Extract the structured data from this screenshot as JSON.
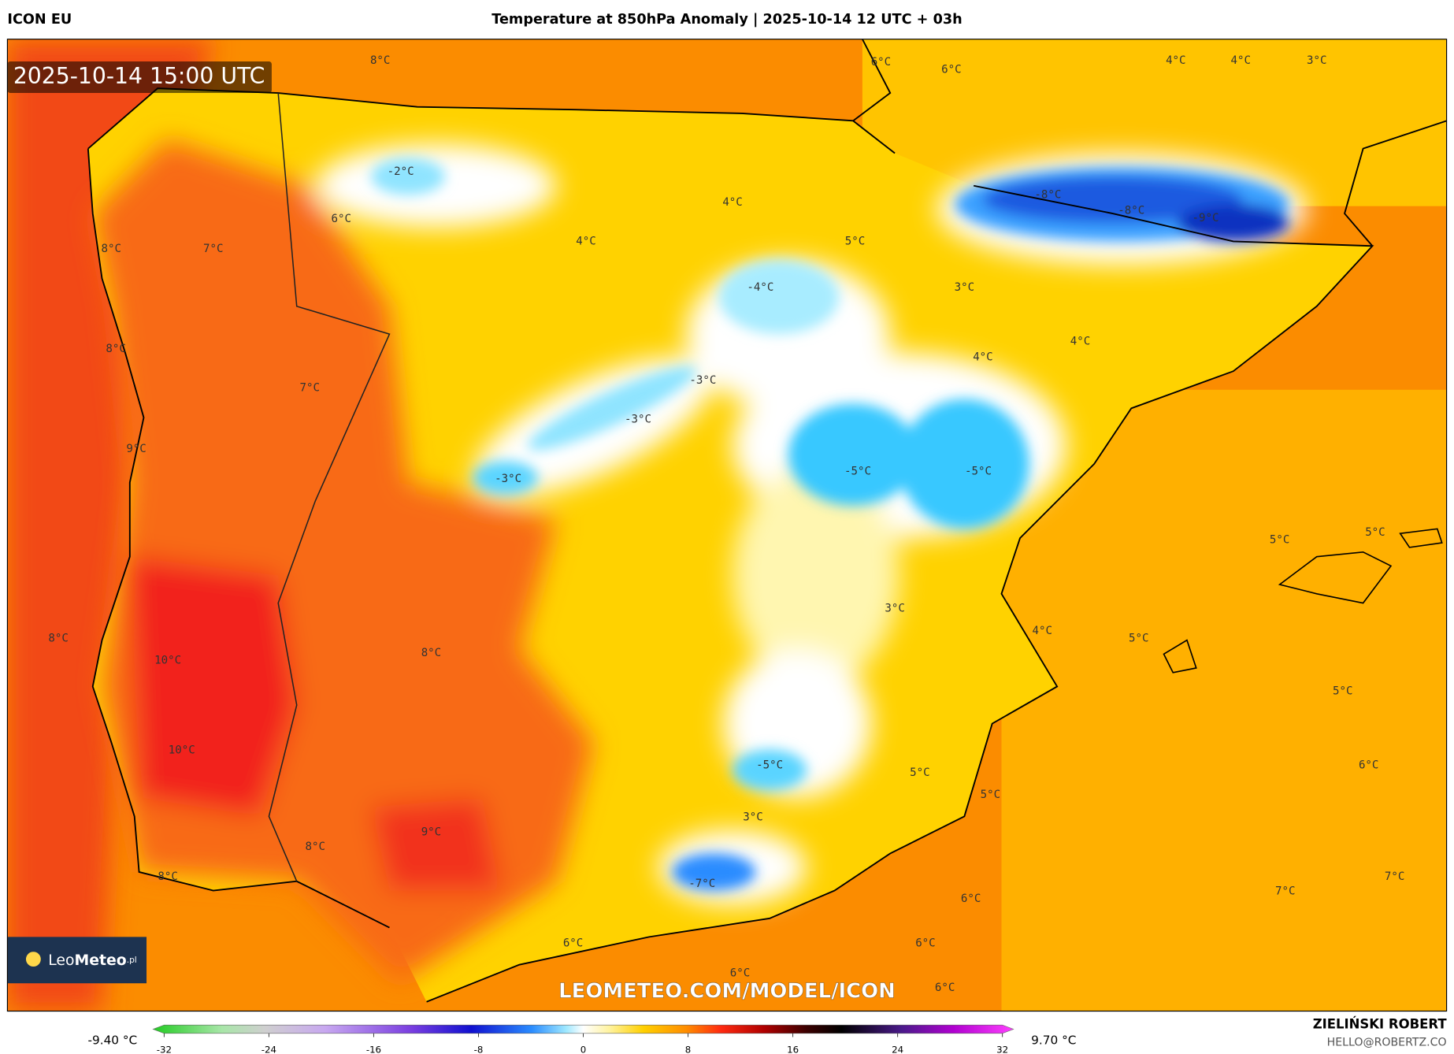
{
  "header": {
    "model": "ICON EU",
    "title": "Temperature at 850hPa Anomaly | 2025-10-14 12 UTC + 03h"
  },
  "map": {
    "timestamp": "2025-10-14 15:00 UTC",
    "labels": [
      "8°C",
      "6°C",
      "6°C",
      "4°C",
      "4°C",
      "3°C",
      "-2°C",
      "-8°C",
      "-8°C",
      "-9°C",
      "6°C",
      "4°C",
      "8°C",
      "7°C",
      "4°C",
      "5°C",
      "-4°C",
      "3°C",
      "8°C",
      "4°C",
      "4°C",
      "-3°C",
      "7°C",
      "-3°C",
      "9°C",
      "-3°C",
      "-5°C",
      "-5°C",
      "5°C",
      "5°C",
      "3°C",
      "4°C",
      "5°C",
      "8°C",
      "8°C",
      "10°C",
      "5°C",
      "10°C",
      "-5°C",
      "6°C",
      "5°C",
      "5°C",
      "3°C",
      "9°C",
      "8°C",
      "8°C",
      "-7°C",
      "7°C",
      "7°C",
      "6°C",
      "6°C",
      "6°C",
      "6°C",
      "6°C"
    ],
    "watermark": "LEOMETEO.COM/MODEL/ICON",
    "logo": {
      "light": "Leo",
      "bold": "Meteo",
      "suffix": ".pl"
    }
  },
  "colorbar": {
    "min_label": "-9.40 °C",
    "max_label": "9.70 °C",
    "range": [
      -32,
      32
    ],
    "ticks": [
      -32,
      -24,
      -16,
      -8,
      0,
      8,
      16,
      24,
      32
    ]
  },
  "footer": {
    "author": "ZIELIŃSKI ROBERT",
    "email": "HELLO@ROBERTZ.CO"
  }
}
